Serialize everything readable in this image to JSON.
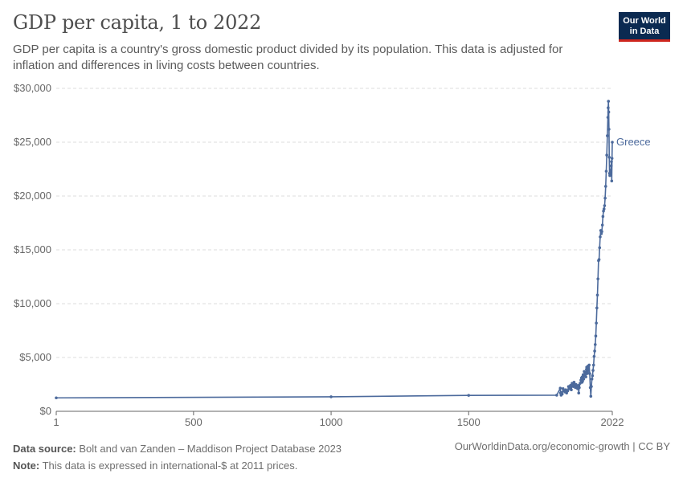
{
  "header": {
    "title": "GDP per capita, 1 to 2022",
    "subtitle": "GDP per capita is a country's gross domestic product divided by its population. This data is adjusted for inflation and differences in living costs between countries.",
    "logo_line1": "Our World",
    "logo_line2": "in Data"
  },
  "footer": {
    "source_label": "Data source:",
    "source_text": "Bolt and van Zanden – Maddison Project Database 2023",
    "note_label": "Note:",
    "note_text": "This data is expressed in international-$ at 2011 prices.",
    "url_text": "OurWorldinData.org/economic-growth | CC BY"
  },
  "colors": {
    "series": "#4c6a9c",
    "grid": "#dddddd",
    "axis": "#666666"
  },
  "chart_data": {
    "type": "line",
    "title": "GDP per capita, 1 to 2022",
    "xlabel": "",
    "ylabel": "",
    "xlim": [
      1,
      2022
    ],
    "ylim": [
      0,
      30000
    ],
    "x_ticks": [
      1,
      500,
      1000,
      1500,
      2022
    ],
    "y_ticks": [
      0,
      5000,
      10000,
      15000,
      20000,
      25000,
      30000
    ],
    "y_tick_labels": [
      "$0",
      "$5,000",
      "$10,000",
      "$15,000",
      "$20,000",
      "$25,000",
      "$30,000"
    ],
    "series": [
      {
        "name": "Greece",
        "x": [
          1,
          1000,
          1500,
          1820,
          1833,
          1834,
          1836,
          1838,
          1840,
          1843,
          1846,
          1850,
          1853,
          1856,
          1860,
          1863,
          1866,
          1870,
          1873,
          1876,
          1880,
          1883,
          1886,
          1888,
          1890,
          1893,
          1896,
          1899,
          1900,
          1902,
          1905,
          1908,
          1910,
          1912,
          1913,
          1914,
          1916,
          1918,
          1920,
          1922,
          1924,
          1926,
          1928,
          1929,
          1930,
          1932,
          1934,
          1936,
          1938,
          1940,
          1942,
          1944,
          1946,
          1948,
          1950,
          1952,
          1954,
          1956,
          1958,
          1960,
          1962,
          1964,
          1966,
          1968,
          1970,
          1972,
          1974,
          1976,
          1978,
          1980,
          1982,
          1984,
          1986,
          1988,
          1990,
          1992,
          1994,
          1996,
          1998,
          2000,
          2002,
          2004,
          2006,
          2007,
          2008,
          2009,
          2010,
          2011,
          2012,
          2013,
          2014,
          2015,
          2016,
          2017,
          2018,
          2019,
          2020,
          2021,
          2022
        ],
        "values": [
          1250,
          1350,
          1480,
          1500,
          2150,
          1700,
          1500,
          1750,
          1600,
          2100,
          1900,
          1800,
          2000,
          1700,
          1900,
          2300,
          2100,
          2400,
          2000,
          2600,
          2300,
          2700,
          2500,
          2200,
          2500,
          2300,
          2100,
          2400,
          1700,
          2200,
          2600,
          2900,
          3100,
          2700,
          3200,
          2800,
          3400,
          3000,
          3700,
          3300,
          3600,
          3200,
          3900,
          4100,
          3500,
          3600,
          4200,
          3800,
          4300,
          3500,
          2200,
          1400,
          2300,
          3000,
          3300,
          3800,
          4300,
          5100,
          5600,
          6200,
          7000,
          8200,
          9600,
          10800,
          12300,
          14000,
          14100,
          15200,
          16200,
          16800,
          16500,
          16700,
          17300,
          18100,
          18600,
          18800,
          19100,
          19800,
          20900,
          22300,
          23800,
          25600,
          27300,
          28200,
          28800,
          27800,
          26200,
          23600,
          22100,
          21900,
          22100,
          22200,
          22100,
          22400,
          22800,
          23200,
          21400,
          23500,
          25000
        ]
      }
    ]
  }
}
